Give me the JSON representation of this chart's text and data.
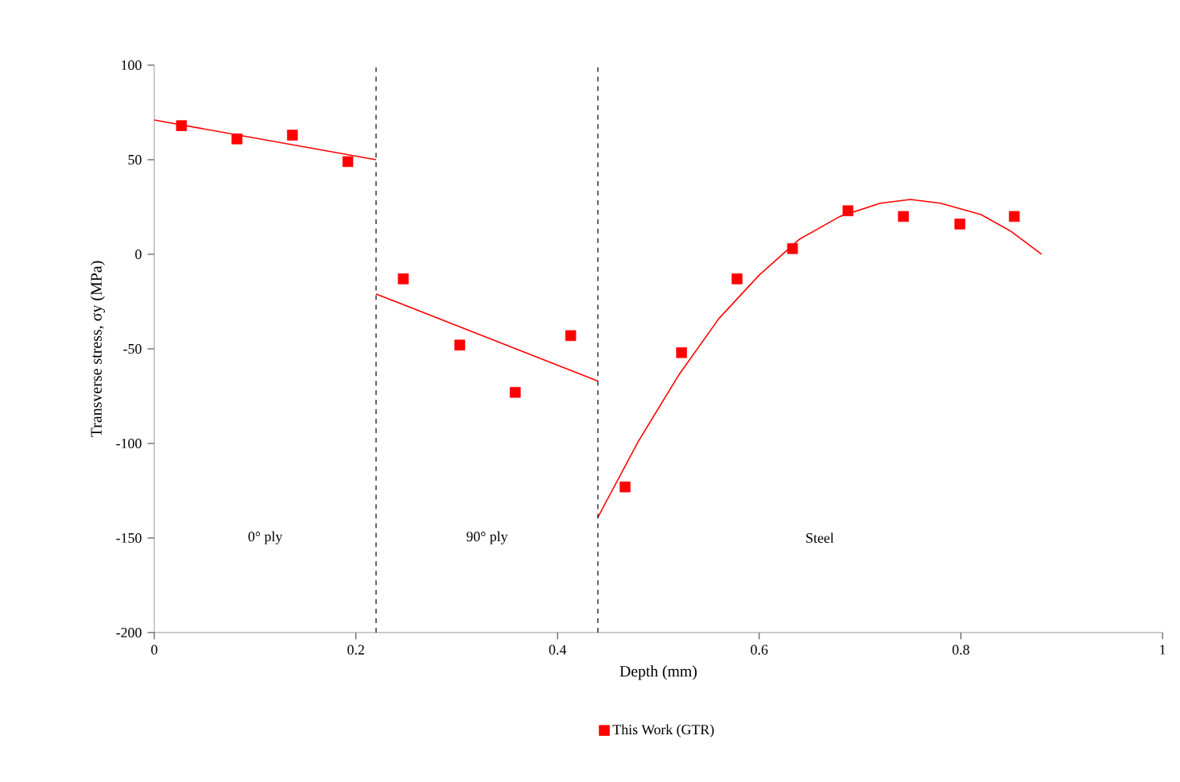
{
  "chart_data": {
    "type": "scatter",
    "xlabel": "Depth (mm)",
    "ylabel": "Transverse stress, σy (MPa)",
    "xlim": [
      0,
      1
    ],
    "xticks": [
      0,
      0.2,
      0.4,
      0.6,
      0.8,
      1
    ],
    "ylim": [
      -200,
      100
    ],
    "yticks": [
      -200,
      -150,
      -100,
      -50,
      0,
      50,
      100
    ],
    "grid": false,
    "legend": "bottom",
    "series": [
      {
        "name": "This Work (GTR)",
        "marker": "square",
        "color": "#ff0000",
        "x": [
          0.027,
          0.082,
          0.137,
          0.192,
          0.247,
          0.303,
          0.358,
          0.413,
          0.467,
          0.523,
          0.578,
          0.633,
          0.688,
          0.743,
          0.799,
          0.853
        ],
        "values": [
          68,
          61,
          63,
          49,
          -13,
          -48,
          -73,
          -43,
          -123,
          -52,
          -13,
          3,
          23,
          20,
          16,
          20
        ]
      },
      {
        "type": "line",
        "color": "#ff0000",
        "x": [
          0,
          0.22
        ],
        "values": [
          71,
          50
        ]
      },
      {
        "type": "line",
        "color": "#ff0000",
        "x": [
          0.22,
          0.44
        ],
        "values": [
          -21,
          -67
        ]
      },
      {
        "type": "line",
        "color": "#ff0000",
        "x": [
          0.44,
          0.48,
          0.52,
          0.56,
          0.6,
          0.64,
          0.68,
          0.72,
          0.75,
          0.78,
          0.82,
          0.85,
          0.88
        ],
        "values": [
          -139,
          -99,
          -64,
          -34,
          -11,
          8,
          20,
          27,
          29,
          27,
          21,
          12,
          0
        ]
      }
    ],
    "ref_lines": [
      {
        "axis": "x",
        "value": 0.22,
        "color": "#000000",
        "line_style": "dashed"
      },
      {
        "axis": "x",
        "value": 0.44,
        "color": "#000000",
        "line_style": "dashed"
      }
    ],
    "annotations": [
      "0° ply",
      "90° ply",
      "Steel"
    ]
  }
}
